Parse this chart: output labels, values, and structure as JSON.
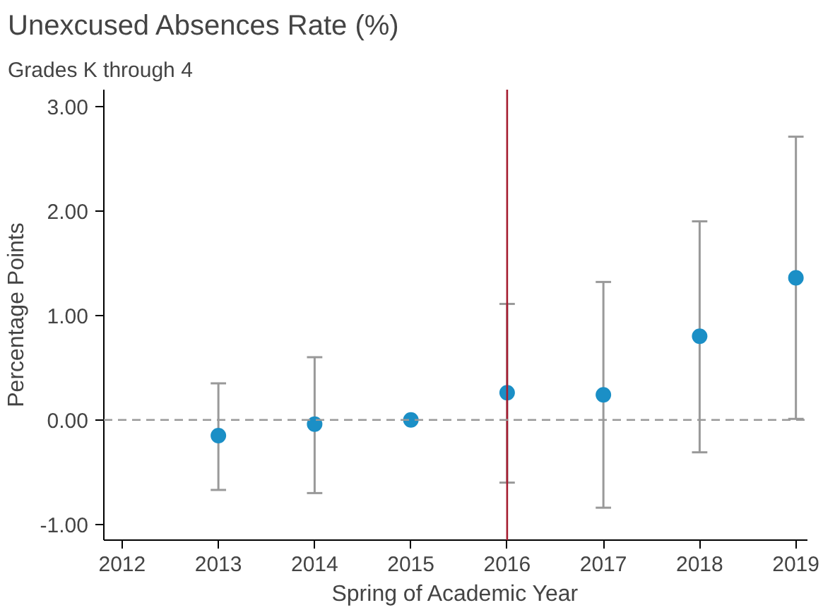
{
  "chart_data": {
    "type": "scatter",
    "title": "Unexcused Absences Rate (%)",
    "subtitle": "Grades K through 4",
    "xlabel": "Spring of Academic Year",
    "ylabel": "Percentage Points",
    "x": [
      2013,
      2014,
      2015,
      2016,
      2017,
      2018,
      2019
    ],
    "values": [
      -0.15,
      -0.04,
      0.0,
      0.26,
      0.24,
      0.8,
      1.36
    ],
    "errors": [
      [
        -0.67,
        0.35
      ],
      [
        -0.7,
        0.6
      ],
      null,
      [
        -0.6,
        1.11
      ],
      [
        -0.84,
        1.32
      ],
      [
        -0.31,
        1.9
      ],
      [
        0.01,
        2.71
      ]
    ],
    "color": "#1b8fc6",
    "marker": "circle",
    "xlim": [
      2011.81,
      2019.12
    ],
    "xticks": [
      2012,
      2013,
      2014,
      2015,
      2016,
      2017,
      2018,
      2019
    ],
    "ylim": [
      -1.15,
      3.16
    ],
    "yticks": [
      {
        "value": -1,
        "label": "-1.00"
      },
      {
        "value": 0,
        "label": "0.00"
      },
      {
        "value": 1,
        "label": "1.00"
      },
      {
        "value": 2,
        "label": "2.00"
      },
      {
        "value": 3,
        "label": "3.00"
      }
    ],
    "ref_lines": [
      {
        "axis": "x",
        "value": 2016,
        "color": "#a51c30",
        "line_style": "solid"
      },
      {
        "axis": "y",
        "value": 0,
        "color": "#999999",
        "line_style": "dashed"
      }
    ],
    "grid": false
  }
}
